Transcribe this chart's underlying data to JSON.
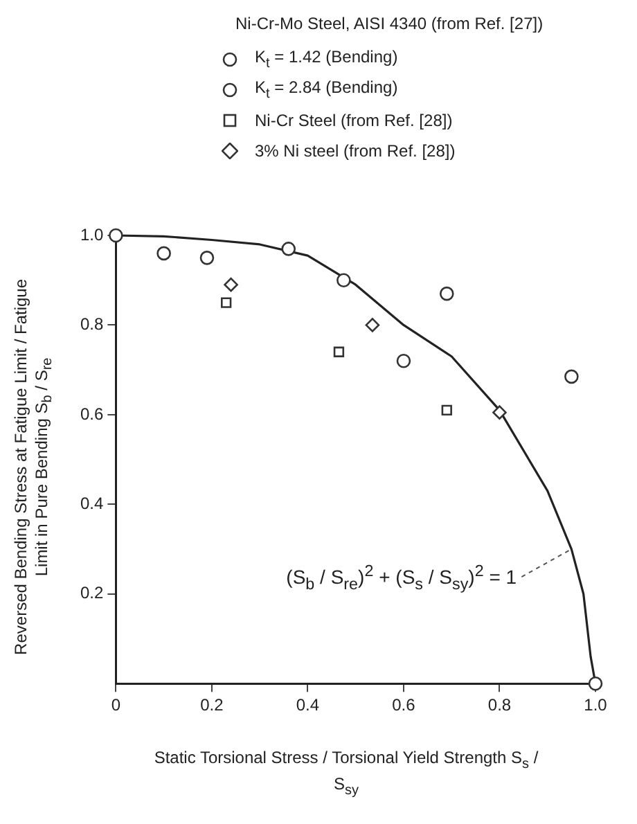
{
  "chart_data": {
    "type": "scatter",
    "legend_title": "Ni-Cr-Mo Steel, AISI 4340 (from Ref. [27])",
    "xlabel": "Static Torsional Stress / Torsional Yield Strength   S$_{s}$ / S$_{sy}$",
    "ylabel": "Reversed Bending Stress at Fatigue Limit / Fatigue Limit in Pure Bending   S$_{b}$ / S$_{re}$",
    "xlim": [
      0,
      1
    ],
    "ylim": [
      0,
      1
    ],
    "xticks": [
      0,
      0.2,
      0.4,
      0.6,
      0.8,
      {
        "value": 1,
        "label": "1.0"
      }
    ],
    "yticks": [
      0.2,
      0.4,
      0.6,
      0.8,
      {
        "value": 1,
        "label": "1.0"
      }
    ],
    "grid": false,
    "legend": "top",
    "tick_labels": "xy",
    "series": [
      {
        "name": "K$_{t}$ = 1.42 (Bending)",
        "color": "#333333",
        "marker": "circle",
        "x": [
          0,
          0.1,
          0.36,
          0.69,
          1
        ],
        "values": [
          1,
          0.96,
          0.97,
          0.87,
          0
        ]
      },
      {
        "name": "K$_{t}$ = 2.84 (Bending)",
        "color": "#333333",
        "marker": "circle",
        "x": [
          0.19,
          0.475,
          0.6,
          0.95
        ],
        "values": [
          0.95,
          0.9,
          0.72,
          0.685
        ]
      },
      {
        "name": "Ni-Cr Steel (from Ref. [28])",
        "color": "#333333",
        "marker": "square",
        "x": [
          0.23,
          0.465,
          0.69
        ],
        "values": [
          0.85,
          0.74,
          0.61
        ]
      },
      {
        "name": "3% Ni steel (from Ref. [28])",
        "color": "#333333",
        "marker": "diamond",
        "x": [
          0.24,
          0.535,
          0.8
        ],
        "values": [
          0.89,
          0.8,
          0.605
        ]
      },
      {
        "type": "line",
        "name": "(S$_{b}$ / S$_{re}$)$^{2}$ + (S$_{s}$ / S$_{sy}$)$^{2}$ = 1",
        "color": "#222222",
        "marker": "none",
        "line_style": "solid",
        "x": [
          0,
          0.1,
          0.2,
          0.3,
          0.4,
          0.5,
          0.6,
          0.7,
          0.8,
          0.9,
          0.95,
          0.975,
          0.99,
          1
        ],
        "values": [
          1,
          0.998,
          0.99,
          0.98,
          0.955,
          0.89,
          0.8,
          0.73,
          0.61,
          0.43,
          0.3,
          0.2,
          0.06,
          0
        ]
      }
    ]
  }
}
